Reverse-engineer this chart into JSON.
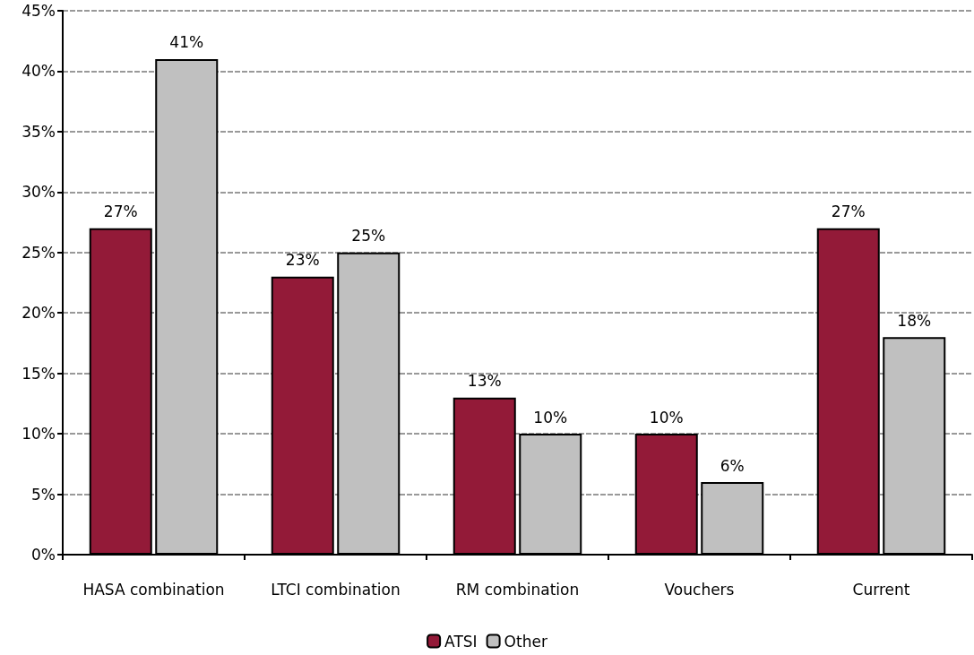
{
  "chart_data": {
    "type": "bar",
    "categories": [
      "HASA combination",
      "LTCI combination",
      "RM combination",
      "Vouchers",
      "Current"
    ],
    "series": [
      {
        "name": "ATSI",
        "color": "#931a38",
        "values": [
          27,
          23,
          13,
          10,
          27
        ],
        "value_labels": [
          "27%",
          "23%",
          "13%",
          "10%",
          "27%"
        ]
      },
      {
        "name": "Other",
        "color": "#c0c0c0",
        "values": [
          41,
          25,
          10,
          6,
          18
        ],
        "value_labels": [
          "41%",
          "25%",
          "10%",
          "6%",
          "18%"
        ]
      }
    ],
    "ylim": [
      0,
      45
    ],
    "yticks": [
      {
        "value": 0,
        "label": "0%"
      },
      {
        "value": 5,
        "label": "5%"
      },
      {
        "value": 10,
        "label": "10%"
      },
      {
        "value": 15,
        "label": "15%"
      },
      {
        "value": 20,
        "label": "20%"
      },
      {
        "value": 25,
        "label": "25%"
      },
      {
        "value": 30,
        "label": "30%"
      },
      {
        "value": 35,
        "label": "35%"
      },
      {
        "value": 40,
        "label": "40%"
      },
      {
        "value": 45,
        "label": "45%"
      }
    ],
    "grid": "y",
    "legend": "bottom"
  }
}
